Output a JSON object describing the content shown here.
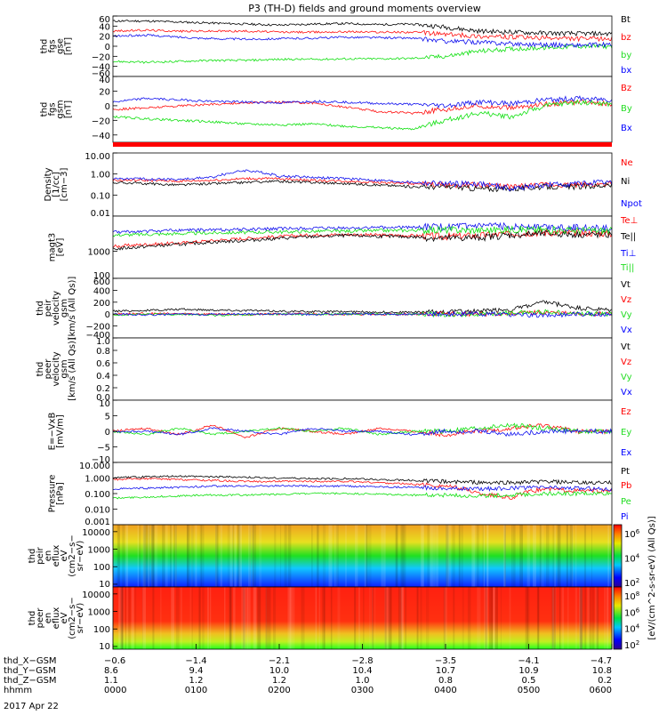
{
  "title": "P3 (TH-D) fields and ground moments overview",
  "date": "2017 Apr 22",
  "colors": {
    "black": "#000000",
    "red": "#ff0000",
    "green": "#22dd22",
    "blue": "#0000ff",
    "line_red": "#ff1010",
    "line_green": "#10e010",
    "line_blue": "#1010ee"
  },
  "chart_data": [
    {
      "type": "line",
      "panel": "fgs_gse",
      "ylabel_lines": [
        "thd",
        "fgs",
        "gse",
        "[nT]"
      ],
      "ylim": [
        -60,
        60
      ],
      "yticks": [
        "60",
        "40",
        "20",
        "0",
        "−20",
        "−40",
        "−60"
      ],
      "series": [
        {
          "name": "Bt",
          "color": "black",
          "values": [
            50,
            50,
            48,
            46,
            44,
            42,
            44,
            45,
            43,
            44,
            38,
            30,
            28,
            26,
            25,
            25
          ]
        },
        {
          "name": "bz",
          "color": "red",
          "values": [
            30,
            32,
            30,
            30,
            30,
            28,
            28,
            29,
            28,
            28,
            24,
            20,
            18,
            16,
            15,
            15
          ]
        },
        {
          "name": "by",
          "color": "green",
          "values": [
            -30,
            -32,
            -30,
            -28,
            -28,
            -26,
            -26,
            -25,
            -25,
            -24,
            -20,
            -10,
            -5,
            -3,
            0,
            0
          ]
        },
        {
          "name": "bx",
          "color": "blue",
          "values": [
            20,
            22,
            18,
            15,
            14,
            15,
            16,
            18,
            17,
            16,
            10,
            8,
            5,
            3,
            2,
            3
          ]
        }
      ]
    },
    {
      "type": "line",
      "panel": "fgs_gsm",
      "ylabel_lines": [
        "thd",
        "fgs",
        "gsm",
        "[nT]"
      ],
      "ylim": [
        -50,
        40
      ],
      "yticks": [
        "40",
        "20",
        "0",
        "−20",
        "−40"
      ],
      "series": [
        {
          "name": "Bz",
          "color": "red",
          "values": [
            -5,
            -3,
            0,
            2,
            4,
            5,
            4,
            -2,
            -8,
            -10,
            -5,
            0,
            -3,
            2,
            5,
            3
          ]
        },
        {
          "name": "By",
          "color": "green",
          "values": [
            -15,
            -18,
            -20,
            -22,
            -25,
            -26,
            -25,
            -28,
            -30,
            -32,
            -20,
            -10,
            -15,
            0,
            5,
            2
          ]
        },
        {
          "name": "Bx",
          "color": "blue",
          "values": [
            5,
            10,
            8,
            6,
            5,
            4,
            6,
            5,
            3,
            2,
            0,
            5,
            3,
            8,
            10,
            8
          ]
        }
      ]
    },
    {
      "type": "line",
      "panel": "density",
      "ylabel_lines": [
        "Density",
        "[1/cc]",
        "[cm−3]"
      ],
      "scale": "log",
      "ylim": [
        0.01,
        10
      ],
      "yticks": [
        "10.00",
        "1.00",
        "0.10",
        "0.01"
      ],
      "series": [
        {
          "name": "Ne",
          "color": "red",
          "values": [
            0.5,
            0.5,
            0.45,
            0.5,
            0.6,
            0.6,
            0.5,
            0.45,
            0.4,
            0.35,
            0.3,
            0.3,
            0.25,
            0.3,
            0.3,
            0.35
          ]
        },
        {
          "name": "Ni",
          "color": "black",
          "values": [
            0.4,
            0.35,
            0.3,
            0.35,
            0.4,
            0.45,
            0.4,
            0.35,
            0.3,
            0.25,
            0.25,
            0.2,
            0.2,
            0.25,
            0.25,
            0.3
          ]
        },
        {
          "name": "Npot",
          "color": "blue",
          "values": [
            0.6,
            0.6,
            0.55,
            0.7,
            1.5,
            0.8,
            0.7,
            0.6,
            0.5,
            0.4,
            0.35,
            0.35,
            0.2,
            0.3,
            0.35,
            0.4
          ]
        }
      ]
    },
    {
      "type": "line",
      "panel": "temperature",
      "ylabel_lines": [
        "magt3",
        "[eV]"
      ],
      "scale": "log",
      "ylim": [
        100,
        20000
      ],
      "yticks": [
        "1000",
        "100"
      ],
      "series": [
        {
          "name": "Te⊥",
          "color": "red",
          "values": [
            1500,
            1800,
            2000,
            2500,
            3000,
            3500,
            4000,
            4200,
            4000,
            3800,
            3500,
            3800,
            4500,
            5000,
            4800,
            4500
          ]
        },
        {
          "name": "Te||",
          "color": "black",
          "values": [
            1200,
            1500,
            1800,
            2200,
            2500,
            3000,
            3500,
            3800,
            3600,
            3400,
            3000,
            3200,
            4000,
            4500,
            4200,
            4000
          ]
        },
        {
          "name": "Ti⊥",
          "color": "blue",
          "values": [
            5000,
            5500,
            6000,
            6200,
            6500,
            6800,
            7000,
            7200,
            7500,
            7800,
            8000,
            8200,
            8500,
            8000,
            7500,
            7000
          ]
        },
        {
          "name": "Ti||",
          "color": "green",
          "values": [
            4000,
            4200,
            4500,
            4800,
            5000,
            5200,
            5500,
            5600,
            5800,
            6000,
            6200,
            6000,
            6500,
            6200,
            6000,
            5800
          ]
        }
      ]
    },
    {
      "type": "line",
      "panel": "peir_velocity",
      "ylabel_lines": [
        "thd",
        "peir",
        "velocity",
        "gsm",
        "[km/s (All Qs)]"
      ],
      "ylim": [
        -400,
        600
      ],
      "yticks": [
        "600",
        "400",
        "200",
        "0",
        "−200",
        "−400"
      ],
      "series": [
        {
          "name": "Vt",
          "color": "black",
          "values": [
            50,
            60,
            80,
            70,
            60,
            50,
            40,
            40,
            35,
            30,
            40,
            50,
            80,
            200,
            100,
            60
          ]
        },
        {
          "name": "Vz",
          "color": "red",
          "values": [
            0,
            10,
            5,
            0,
            -5,
            0,
            5,
            0,
            -5,
            0,
            5,
            0,
            10,
            30,
            0,
            5
          ]
        },
        {
          "name": "Vy",
          "color": "green",
          "values": [
            -10,
            -5,
            0,
            -20,
            -10,
            0,
            -5,
            0,
            5,
            0,
            -5,
            0,
            20,
            40,
            10,
            0
          ]
        },
        {
          "name": "Vx",
          "color": "blue",
          "values": [
            0,
            -10,
            -5,
            0,
            5,
            0,
            -5,
            0,
            0,
            -5,
            0,
            5,
            -10,
            -20,
            0,
            0
          ]
        }
      ]
    },
    {
      "type": "line",
      "panel": "peer_velocity",
      "ylabel_lines": [
        "thd",
        "peer",
        "velocity",
        "gsm",
        "[km/s (All Qs)]"
      ],
      "ylim": [
        0,
        1
      ],
      "yticks": [
        "1.0",
        "0.8",
        "0.6",
        "0.4",
        "0.2",
        "0.0"
      ],
      "series": [
        {
          "name": "Vt",
          "color": "black",
          "values": []
        },
        {
          "name": "Vz",
          "color": "red",
          "values": []
        },
        {
          "name": "Vy",
          "color": "green",
          "values": []
        },
        {
          "name": "Vx",
          "color": "blue",
          "values": []
        }
      ]
    },
    {
      "type": "line",
      "panel": "efield",
      "ylabel_lines": [
        "E=−VxB",
        "[mV/m]"
      ],
      "ylim": [
        -10,
        10
      ],
      "yticks": [
        "10",
        "5",
        "0",
        "−5",
        "−10"
      ],
      "series": [
        {
          "name": "Ez",
          "color": "red",
          "values": [
            0,
            1,
            -1,
            2,
            -2,
            1,
            0,
            -1,
            1,
            0,
            -1,
            0,
            1,
            2,
            0,
            0
          ]
        },
        {
          "name": "Ey",
          "color": "green",
          "values": [
            0,
            -1,
            1,
            -1,
            0,
            1,
            0,
            1,
            -1,
            0,
            0,
            1,
            2,
            1,
            0,
            0
          ]
        },
        {
          "name": "Ex",
          "color": "blue",
          "values": [
            0,
            0,
            -1,
            1,
            0,
            -1,
            1,
            0,
            0,
            -1,
            0,
            0,
            -1,
            0,
            0,
            0
          ]
        }
      ]
    },
    {
      "type": "line",
      "panel": "pressure",
      "ylabel_lines": [
        "Pressure",
        "[nPa]"
      ],
      "scale": "log",
      "ylim": [
        0.001,
        10
      ],
      "yticks": [
        "10.000",
        "1.000",
        "0.100",
        "0.010",
        "0.001"
      ],
      "series": [
        {
          "name": "Pt",
          "color": "black",
          "values": [
            1.0,
            1.2,
            1.3,
            1.2,
            1.1,
            1.0,
            0.9,
            0.9,
            0.8,
            0.7,
            0.6,
            0.5,
            0.5,
            0.6,
            0.5,
            0.5
          ]
        },
        {
          "name": "Pb",
          "color": "red",
          "values": [
            0.8,
            0.9,
            0.8,
            0.7,
            0.6,
            0.6,
            0.6,
            0.6,
            0.5,
            0.4,
            0.3,
            0.1,
            0.05,
            0.2,
            0.15,
            0.15
          ]
        },
        {
          "name": "Pe",
          "color": "green",
          "values": [
            0.05,
            0.06,
            0.07,
            0.08,
            0.08,
            0.09,
            0.1,
            0.1,
            0.09,
            0.08,
            0.08,
            0.07,
            0.08,
            0.1,
            0.1,
            0.1
          ]
        },
        {
          "name": "Pi",
          "color": "blue",
          "values": [
            0.2,
            0.22,
            0.25,
            0.3,
            0.3,
            0.32,
            0.3,
            0.3,
            0.28,
            0.25,
            0.22,
            0.2,
            0.22,
            0.25,
            0.22,
            0.2
          ]
        }
      ]
    },
    {
      "type": "heatmap",
      "panel": "peir_eflux",
      "ylabel_lines": [
        "thd",
        "peir",
        "en",
        "eflux",
        "eV",
        "(cm2−s−",
        "sr−eV)"
      ],
      "scale": "log",
      "ylim": [
        7,
        25000
      ],
      "yticks": [
        "10000",
        "1000",
        "100",
        "10"
      ],
      "colorbar_label": "[eV/(cm^2-s-sr-eV) (All Qs)]",
      "colorbar_ticks": [
        "10^6",
        "10^4",
        "10^2"
      ]
    },
    {
      "type": "heatmap",
      "panel": "peer_eflux",
      "ylabel_lines": [
        "thd",
        "peer",
        "en",
        "eflux",
        "eV",
        "(cm2−s−",
        "sr−eV)"
      ],
      "scale": "log",
      "ylim": [
        7,
        25000
      ],
      "yticks": [
        "10000",
        "1000",
        "100",
        "10"
      ],
      "colorbar_label": "[eV/(cm^2-s-sr-eV) (All Qs)]",
      "colorbar_ticks": [
        "10^8",
        "10^6",
        "10^4",
        "10^2"
      ]
    }
  ],
  "xaxis": {
    "rows": [
      {
        "label": "thd_X−GSM",
        "values": [
          "−0.6",
          "−1.4",
          "−2.1",
          "−2.8",
          "−3.5",
          "−4.1",
          "−4.7"
        ]
      },
      {
        "label": "thd_Y−GSM",
        "values": [
          "8.6",
          "9.4",
          "10.0",
          "10.4",
          "10.7",
          "10.9",
          "10.8"
        ]
      },
      {
        "label": "thd_Z−GSM",
        "values": [
          "1.1",
          "1.2",
          "1.2",
          "1.0",
          "0.8",
          "0.5",
          "0.2"
        ]
      },
      {
        "label": "hhmm",
        "values": [
          "0000",
          "0100",
          "0200",
          "0300",
          "0400",
          "0500",
          "0600"
        ]
      }
    ]
  }
}
